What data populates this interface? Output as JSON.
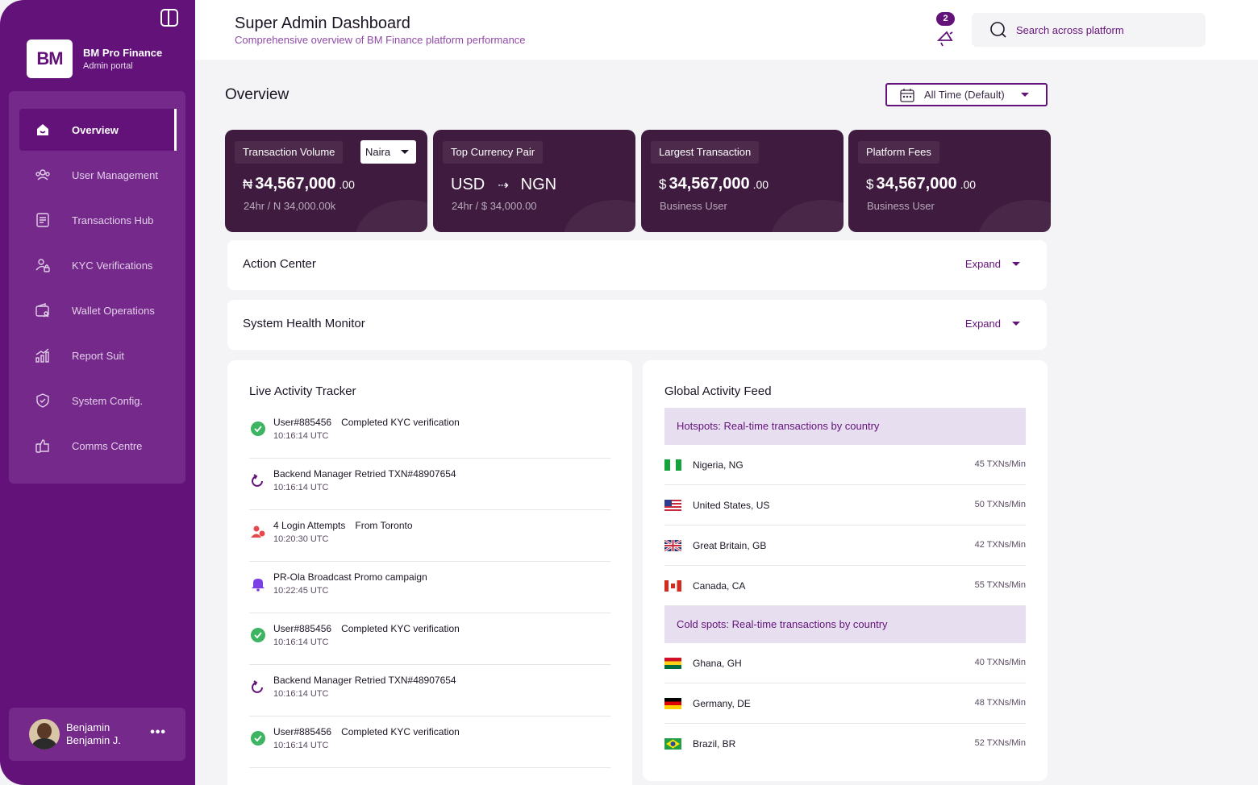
{
  "brand": {
    "logo_text": "BM",
    "name": "BM Pro Finance",
    "subtitle": "Admin portal"
  },
  "sidebar": {
    "items": [
      {
        "label": "Overview",
        "icon": "home-icon",
        "active": true
      },
      {
        "label": "User Management",
        "icon": "users-icon"
      },
      {
        "label": "Transactions Hub",
        "icon": "document-icon"
      },
      {
        "label": "KYC Verifications",
        "icon": "kyc-icon"
      },
      {
        "label": "Wallet Operations",
        "icon": "wallet-icon"
      },
      {
        "label": "Report Suit",
        "icon": "chart-icon"
      },
      {
        "label": "System Config.",
        "icon": "shield-icon"
      },
      {
        "label": "Comms Centre",
        "icon": "comms-icon"
      }
    ]
  },
  "user": {
    "first_name": "Benjamin",
    "short_name": "Benjamin J.",
    "more": "•••"
  },
  "header": {
    "title": "Super Admin Dashboard",
    "subtitle": "Comprehensive overview of BM Finance platform performance",
    "notification_count": "2",
    "search_placeholder": "Search across platform"
  },
  "overview": {
    "title": "Overview",
    "period": "All Time (Default)"
  },
  "stats": {
    "volume": {
      "label": "Transaction Volume",
      "currency_select": "Naira",
      "symbol": "₦",
      "value": "34,567,000",
      "decimals": ".00",
      "sub": "24hr / N 34,000.00k"
    },
    "pair": {
      "label": "Top Currency Pair",
      "from": "USD",
      "arrow": "⇢",
      "to": "NGN",
      "sub": "24hr / $ 34,000.00"
    },
    "largest": {
      "label": "Largest Transaction",
      "symbol": "$",
      "value": "34,567,000",
      "decimals": ".00",
      "sub": "Business User"
    },
    "fees": {
      "label": "Platform Fees",
      "symbol": "$",
      "value": "34,567,000",
      "decimals": ".00",
      "sub": "Business User"
    }
  },
  "action_center": {
    "title": "Action Center",
    "expand": "Expand"
  },
  "health": {
    "title": "System Health Monitor",
    "expand": "Expand"
  },
  "live_tracker": {
    "title": "Live Activity Tracker",
    "items": [
      {
        "type": "check",
        "text": "User#885456",
        "detail": "Completed KYC verification",
        "time": "10:16:14 UTC"
      },
      {
        "type": "retry",
        "text": "Backend Manager Retried TXN#48907654",
        "detail": "",
        "time": "10:16:14 UTC"
      },
      {
        "type": "login",
        "text": "4 Login Attempts",
        "detail": "From Toronto",
        "time": "10:20:30 UTC"
      },
      {
        "type": "bell",
        "text": "PR-Ola Broadcast Promo campaign",
        "detail": "",
        "time": "10:22:45 UTC"
      },
      {
        "type": "check",
        "text": "User#885456",
        "detail": "Completed KYC verification",
        "time": "10:16:14 UTC"
      },
      {
        "type": "retry",
        "text": "Backend Manager Retried TXN#48907654",
        "detail": "",
        "time": "10:16:14 UTC"
      },
      {
        "type": "check",
        "text": "User#885456",
        "detail": "Completed KYC verification",
        "time": "10:16:14 UTC"
      }
    ]
  },
  "global_feed": {
    "title": "Global Activity Feed",
    "hotspots_title": "Hotspots: Real-time transactions by country",
    "hotspots": [
      {
        "flag": "ng",
        "country": "Nigeria, NG",
        "rate": "45 TXNs/Min"
      },
      {
        "flag": "us",
        "country": "United States, US",
        "rate": "50 TXNs/Min"
      },
      {
        "flag": "gb",
        "country": "Great Britain, GB",
        "rate": "42 TXNs/Min"
      },
      {
        "flag": "ca",
        "country": "Canada, CA",
        "rate": "55 TXNs/Min"
      }
    ],
    "coldspots_title": "Cold spots: Real-time transactions by country",
    "coldspots": [
      {
        "flag": "gh",
        "country": "Ghana, GH",
        "rate": "40 TXNs/Min"
      },
      {
        "flag": "de",
        "country": "Germany, DE",
        "rate": "48 TXNs/Min"
      },
      {
        "flag": "br",
        "country": "Brazil, BR",
        "rate": "52 TXNs/Min"
      }
    ]
  },
  "colors": {
    "primary": "#63127a",
    "card": "#3f1c3f",
    "success": "#3bb562",
    "alert": "#e5484d",
    "bell": "#7b3fe4"
  }
}
